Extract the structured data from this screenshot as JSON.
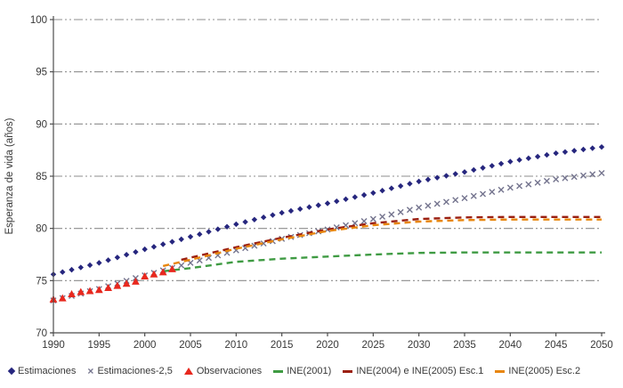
{
  "chart_data": {
    "type": "line",
    "title": "",
    "xlabel": "",
    "ylabel": "Esperanza de vida (años)",
    "xlim": [
      1990,
      2050
    ],
    "ylim": [
      70,
      100
    ],
    "xticks": [
      1990,
      1995,
      2000,
      2005,
      2010,
      2015,
      2020,
      2025,
      2030,
      2035,
      2040,
      2045,
      2050
    ],
    "yticks": [
      70,
      75,
      80,
      85,
      90,
      95,
      100
    ],
    "grid": "horizontal dash-dot-dot gray lines at each 5-year tick",
    "legend_position": "bottom",
    "colors": {
      "axis": "#4D4D4D",
      "grid": "#8C8C8C",
      "text": "#383838"
    },
    "series": [
      {
        "name": "Estimaciones",
        "type": "scatter",
        "marker": "diamond",
        "color": "#26267E",
        "marker_interval_years": 1,
        "x": [
          1990,
          1995,
          2000,
          2005,
          2010,
          2015,
          2020,
          2025,
          2030,
          2035,
          2040,
          2045,
          2050
        ],
        "values": [
          75.6,
          76.7,
          78.0,
          79.2,
          80.4,
          81.5,
          82.4,
          83.4,
          84.5,
          85.4,
          86.4,
          87.2,
          87.8
        ]
      },
      {
        "name": "Estimaciones-2,5",
        "type": "scatter",
        "marker": "x",
        "color": "#74748E",
        "marker_interval_years": 1,
        "x": [
          1990,
          1995,
          2000,
          2005,
          2010,
          2015,
          2020,
          2025,
          2030,
          2035,
          2040,
          2045,
          2050
        ],
        "values": [
          73.1,
          74.2,
          75.5,
          76.7,
          77.9,
          79.0,
          79.9,
          80.9,
          82.0,
          82.9,
          83.9,
          84.7,
          85.3
        ]
      },
      {
        "name": "Observaciones",
        "type": "scatter",
        "marker": "triangle",
        "color": "#E8281E",
        "marker_interval_years": 1,
        "x": [
          1990,
          1991,
          1992,
          1993,
          1994,
          1995,
          1996,
          1997,
          1998,
          1999,
          2000,
          2001,
          2002,
          2003
        ],
        "values": [
          73.2,
          73.3,
          73.7,
          73.9,
          74.0,
          74.1,
          74.3,
          74.5,
          74.7,
          74.9,
          75.4,
          75.6,
          75.8,
          76.1
        ]
      },
      {
        "name": "INE(2001)",
        "type": "dashed-line",
        "marker": "dash",
        "color": "#3F9B43",
        "x": [
          2002,
          2005,
          2010,
          2015,
          2020,
          2025,
          2030,
          2035,
          2040,
          2045,
          2050
        ],
        "values": [
          75.9,
          76.2,
          76.8,
          77.1,
          77.3,
          77.5,
          77.65,
          77.7,
          77.7,
          77.7,
          77.7
        ]
      },
      {
        "name": "INE(2004) e INE(2005) Esc.1",
        "type": "dashed-line",
        "marker": "dash",
        "color": "#9B1F10",
        "x": [
          2004,
          2005,
          2010,
          2015,
          2020,
          2025,
          2030,
          2035,
          2040,
          2045,
          2050
        ],
        "values": [
          77.0,
          77.2,
          78.2,
          79.1,
          79.9,
          80.5,
          80.9,
          81.05,
          81.1,
          81.1,
          81.1
        ]
      },
      {
        "name": "INE(2005) Esc.2",
        "type": "dashed-line",
        "marker": "dash",
        "color": "#E8860D",
        "x": [
          2002,
          2005,
          2010,
          2015,
          2020,
          2025,
          2030,
          2035,
          2040,
          2045,
          2050
        ],
        "values": [
          76.4,
          77.0,
          78.05,
          78.95,
          79.75,
          80.3,
          80.65,
          80.8,
          80.85,
          80.85,
          80.85
        ]
      }
    ]
  }
}
